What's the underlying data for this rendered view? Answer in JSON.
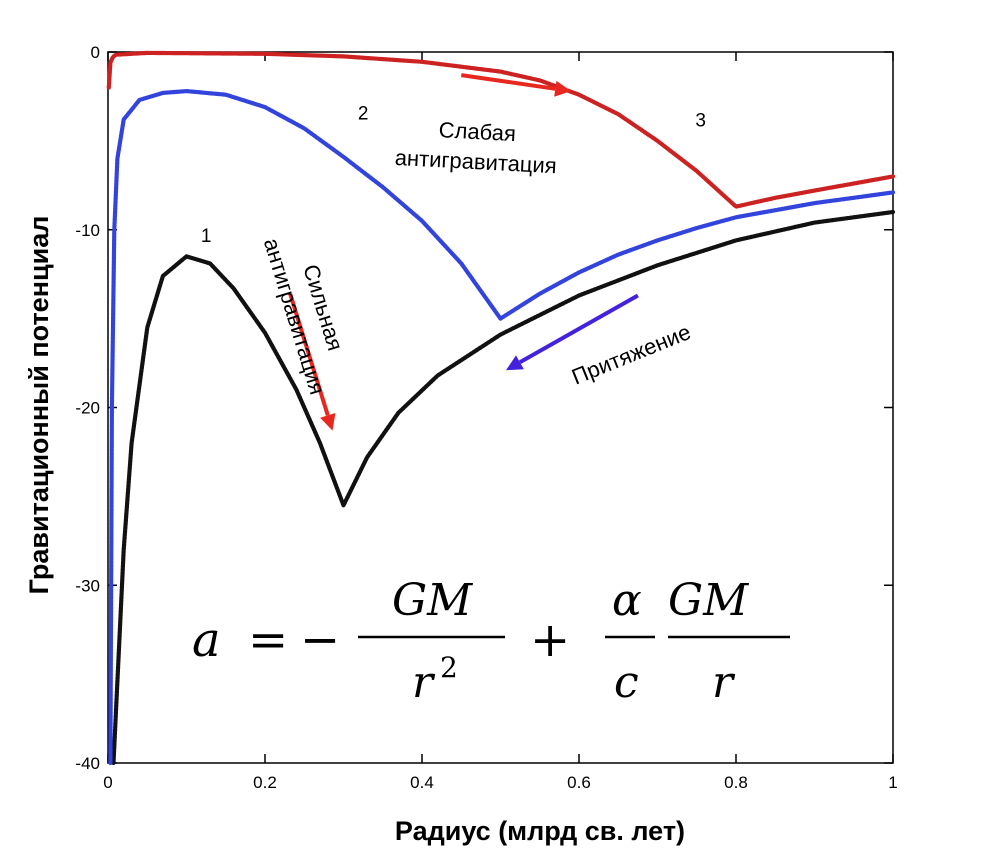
{
  "chart_data": {
    "type": "line",
    "title": "",
    "xlabel": "Радиус (млрд св. лет)",
    "ylabel": "Гравитационный потенциал",
    "xlim": [
      0,
      1
    ],
    "ylim": [
      -40,
      0
    ],
    "x_ticks": [
      0,
      0.2,
      0.4,
      0.6,
      0.8,
      1
    ],
    "x_tick_labels": [
      "0",
      "0.2",
      "0.4",
      "0.6",
      "0.8",
      "1"
    ],
    "y_ticks": [
      0,
      -10,
      -20,
      -30,
      -40
    ],
    "y_tick_labels": [
      "0",
      "-10",
      "-20",
      "-30",
      "-40"
    ],
    "grid": false,
    "series": [
      {
        "name": "1",
        "color": "#111111",
        "points": [
          [
            0.007,
            -40
          ],
          [
            0.02,
            -28
          ],
          [
            0.03,
            -22
          ],
          [
            0.05,
            -15.5
          ],
          [
            0.07,
            -12.6
          ],
          [
            0.1,
            -11.5
          ],
          [
            0.13,
            -11.9
          ],
          [
            0.16,
            -13.3
          ],
          [
            0.2,
            -15.8
          ],
          [
            0.24,
            -19
          ],
          [
            0.27,
            -22
          ],
          [
            0.3,
            -25.5
          ],
          [
            0.33,
            -22.8
          ],
          [
            0.37,
            -20.3
          ],
          [
            0.42,
            -18.2
          ],
          [
            0.5,
            -15.9
          ],
          [
            0.6,
            -13.7
          ],
          [
            0.7,
            -12
          ],
          [
            0.8,
            -10.6
          ],
          [
            0.9,
            -9.6
          ],
          [
            1.0,
            -9.0
          ]
        ]
      },
      {
        "name": "2",
        "color": "#3344dd",
        "points": [
          [
            0.003,
            -40
          ],
          [
            0.005,
            -20
          ],
          [
            0.008,
            -10
          ],
          [
            0.012,
            -6
          ],
          [
            0.02,
            -3.8
          ],
          [
            0.04,
            -2.7
          ],
          [
            0.07,
            -2.3
          ],
          [
            0.1,
            -2.2
          ],
          [
            0.15,
            -2.4
          ],
          [
            0.2,
            -3.1
          ],
          [
            0.25,
            -4.3
          ],
          [
            0.3,
            -5.9
          ],
          [
            0.35,
            -7.6
          ],
          [
            0.4,
            -9.5
          ],
          [
            0.45,
            -11.9
          ],
          [
            0.5,
            -15.0
          ],
          [
            0.55,
            -13.6
          ],
          [
            0.6,
            -12.4
          ],
          [
            0.65,
            -11.4
          ],
          [
            0.7,
            -10.6
          ],
          [
            0.75,
            -9.9
          ],
          [
            0.8,
            -9.3
          ],
          [
            0.85,
            -8.9
          ],
          [
            0.9,
            -8.5
          ],
          [
            0.95,
            -8.2
          ],
          [
            1.0,
            -7.9
          ]
        ]
      },
      {
        "name": "3",
        "color": "#cc2222",
        "points": [
          [
            0.001,
            -2
          ],
          [
            0.003,
            -0.6
          ],
          [
            0.006,
            -0.3
          ],
          [
            0.01,
            -0.15
          ],
          [
            0.05,
            -0.05
          ],
          [
            0.2,
            -0.1
          ],
          [
            0.3,
            -0.25
          ],
          [
            0.4,
            -0.55
          ],
          [
            0.5,
            -1.1
          ],
          [
            0.55,
            -1.6
          ],
          [
            0.6,
            -2.4
          ],
          [
            0.65,
            -3.5
          ],
          [
            0.7,
            -5.0
          ],
          [
            0.75,
            -6.7
          ],
          [
            0.8,
            -8.7
          ],
          [
            0.85,
            -8.2
          ],
          [
            0.9,
            -7.8
          ],
          [
            0.95,
            -7.4
          ],
          [
            1.0,
            -7.0
          ]
        ]
      }
    ],
    "curve_labels": [
      {
        "text": "1",
        "x": 0.125,
        "y": -10.7
      },
      {
        "text": "2",
        "x": 0.325,
        "y": -3.8
      },
      {
        "text": "3",
        "x": 0.755,
        "y": -4.2
      }
    ],
    "annotations": [
      {
        "lines": [
          "Слабая",
          "антигравитация"
        ],
        "x": 0.47,
        "y": -4.9,
        "rotation": 3
      },
      {
        "lines": [
          "Сильная",
          "антигравитация"
        ],
        "x": 0.265,
        "y": -14.5,
        "rotation": 73
      },
      {
        "lines": [
          "Притяжение"
        ],
        "x": 0.67,
        "y": -17.4,
        "rotation": -22
      }
    ],
    "arrows": [
      {
        "name": "weak-antigravity-arrow",
        "color": "#e8281f",
        "from": [
          0.45,
          -1.3
        ],
        "to": [
          0.59,
          -2.2
        ]
      },
      {
        "name": "strong-antigravity-arrow",
        "color": "#e8281f",
        "from": [
          0.232,
          -13.6
        ],
        "to": [
          0.286,
          -21.3
        ]
      },
      {
        "name": "attraction-arrow",
        "color": "#4422dd",
        "from": [
          0.675,
          -13.7
        ],
        "to": [
          0.507,
          -17.9
        ]
      }
    ],
    "formula": {
      "a": "a",
      "eq": "=",
      "minus": "−",
      "plus": "+",
      "GM1": "GM",
      "r2": "r",
      "r2_exp": "2",
      "alpha": "α",
      "c": "c",
      "GM2": "GM",
      "r": "r"
    }
  }
}
